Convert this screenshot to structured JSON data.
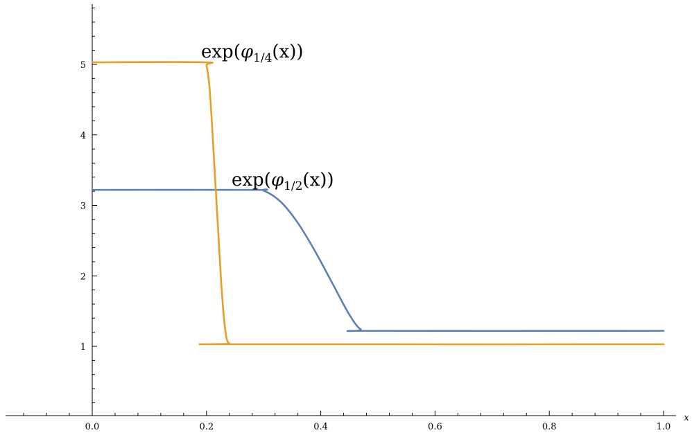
{
  "chart_data": {
    "type": "line",
    "title": "",
    "xlabel": "x",
    "ylabel": "",
    "xlim": [
      -0.14,
      1.0
    ],
    "ylim": [
      0,
      5.9
    ],
    "x_ticks": [
      "0.0",
      "0.2",
      "0.4",
      "0.6",
      "0.8",
      "1.0"
    ],
    "y_ticks": [
      "1",
      "2",
      "3",
      "4",
      "5"
    ],
    "grid": false,
    "series": [
      {
        "name": "exp(φ1/2(x))",
        "color": "#5b7fb6",
        "label": {
          "prefix": "exp(",
          "symbol": "φ",
          "sub": "1/2",
          "suffix": "(x))"
        },
        "points": [
          [
            0.0,
            3.22
          ],
          [
            0.28,
            3.22
          ],
          [
            0.3,
            3.21
          ],
          [
            0.33,
            3.05
          ],
          [
            0.36,
            2.75
          ],
          [
            0.39,
            2.35
          ],
          [
            0.42,
            1.9
          ],
          [
            0.45,
            1.45
          ],
          [
            0.47,
            1.24
          ],
          [
            0.49,
            1.22
          ],
          [
            1.0,
            1.22
          ]
        ]
      },
      {
        "name": "exp(φ1/4(x))",
        "color": "#e6a02a",
        "label": {
          "prefix": "exp(",
          "symbol": "φ",
          "sub": "1/4",
          "suffix": "(x))"
        },
        "points": [
          [
            0.0,
            5.03
          ],
          [
            0.195,
            5.03
          ],
          [
            0.2,
            4.98
          ],
          [
            0.205,
            4.7
          ],
          [
            0.21,
            4.1
          ],
          [
            0.215,
            3.4
          ],
          [
            0.22,
            2.7
          ],
          [
            0.225,
            2.0
          ],
          [
            0.23,
            1.45
          ],
          [
            0.235,
            1.12
          ],
          [
            0.24,
            1.04
          ],
          [
            0.245,
            1.03
          ],
          [
            1.0,
            1.03
          ]
        ]
      }
    ]
  }
}
